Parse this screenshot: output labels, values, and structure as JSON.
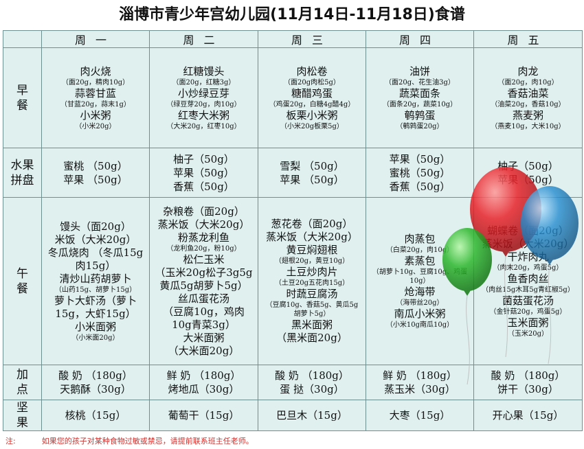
{
  "title": "淄博市青少年宫幼儿园(11月14日-11月18日)食谱",
  "days": [
    "周一",
    "周二",
    "周三",
    "周四",
    "周五"
  ],
  "rows": {
    "breakfast": "早\n餐",
    "fruit": "水果\n拼盘",
    "lunch": "午\n餐",
    "snack": "加\n点",
    "nuts": "坚\n果"
  },
  "breakfast": [
    [
      {
        "t": "肉火烧",
        "s": "big"
      },
      {
        "t": "（面20g，精肉10g）",
        "s": "small"
      },
      {
        "t": "蒜蓉甘蓝",
        "s": "big"
      },
      {
        "t": "（甘蓝20g，蒜末1g）",
        "s": "small"
      },
      {
        "t": "小米粥",
        "s": "big"
      },
      {
        "t": "（小米20g）",
        "s": "small"
      }
    ],
    [
      {
        "t": "红糖馒头",
        "s": "big"
      },
      {
        "t": "（面20g，红糖3g）",
        "s": "small"
      },
      {
        "t": "小炒绿豆芽",
        "s": "big"
      },
      {
        "t": "（绿豆芽20g，肉10g）",
        "s": "small"
      },
      {
        "t": "红枣大米粥",
        "s": "big"
      },
      {
        "t": "（大米20g，红枣10g）",
        "s": "small"
      }
    ],
    [
      {
        "t": "肉松卷",
        "s": "big"
      },
      {
        "t": "（面20g肉松5g）",
        "s": "small"
      },
      {
        "t": "糖醋鸡蛋",
        "s": "big"
      },
      {
        "t": "（鸡蛋20g，白糖4g醋4g）",
        "s": "small"
      },
      {
        "t": "板栗小米粥",
        "s": "big"
      },
      {
        "t": "（小米20g板栗5g）",
        "s": "small"
      }
    ],
    [
      {
        "t": "油饼",
        "s": "big"
      },
      {
        "t": "（面20g、花生油3g）",
        "s": "small"
      },
      {
        "t": "蔬菜面条",
        "s": "big"
      },
      {
        "t": "（面条20g，蔬菜10g）",
        "s": "small"
      },
      {
        "t": "鹌鹑蛋",
        "s": "big"
      },
      {
        "t": "（鹌鹑蛋20g）",
        "s": "small"
      }
    ],
    [
      {
        "t": "肉龙",
        "s": "big"
      },
      {
        "t": "（面20g，肉10g）",
        "s": "small"
      },
      {
        "t": "香菇油菜",
        "s": "big"
      },
      {
        "t": "（油菜20g，香菇10g）",
        "s": "small"
      },
      {
        "t": "燕麦粥",
        "s": "big"
      },
      {
        "t": "（燕麦10g，大米10g）",
        "s": "small"
      }
    ]
  ],
  "fruit": [
    [
      "蜜桃 （50g）",
      "苹果 （50g）"
    ],
    [
      "柚子（50g）",
      "苹果（50g）",
      "香蕉（50g）"
    ],
    [
      "雪梨 （50g）",
      "苹果 （50g）"
    ],
    [
      "苹果（50g）",
      "蜜桃（50g）",
      "香蕉（50g）"
    ],
    [
      "柚子（50g）",
      "苹果（50g）"
    ]
  ],
  "lunch": [
    [
      {
        "t": "馒头（面20g）",
        "s": "big"
      },
      {
        "t": "米饭（大米20g）",
        "s": "big"
      },
      {
        "t": "冬瓜烧肉 （冬瓜15g肉15g）",
        "s": "big"
      },
      {
        "t": "清炒山药胡萝卜",
        "s": "big"
      },
      {
        "t": "（山药15g、胡萝卜15g）",
        "s": "small"
      },
      {
        "t": "萝卜大虾汤（萝卜15g，大虾15g）",
        "s": "big"
      },
      {
        "t": "小米面粥",
        "s": "big"
      },
      {
        "t": "（小米面20g）",
        "s": "small"
      }
    ],
    [
      {
        "t": "杂粮卷（面20g）",
        "s": "big"
      },
      {
        "t": "蒸米饭（大米20g）",
        "s": "big"
      },
      {
        "t": "粉蒸龙利鱼",
        "s": "big"
      },
      {
        "t": "（龙利鱼20g，粉10g）",
        "s": "small"
      },
      {
        "t": "松仁玉米",
        "s": "big"
      },
      {
        "t": "（玉米20g松子3g5g黄瓜5g胡萝卜5g）",
        "s": "big"
      },
      {
        "t": "丝瓜蛋花汤",
        "s": "big"
      },
      {
        "t": "（豆腐10g，鸡肉10g青菜3g）",
        "s": "big"
      },
      {
        "t": "大米面粥",
        "s": "big"
      },
      {
        "t": "（大米面20g）",
        "s": "big"
      }
    ],
    [
      {
        "t": "葱花卷（面20g）",
        "s": "big"
      },
      {
        "t": "蒸米饭（大米20g）",
        "s": "big"
      },
      {
        "t": "黄豆焖翅根",
        "s": "big"
      },
      {
        "t": "（翅根20g，黄豆10g）",
        "s": "small"
      },
      {
        "t": "土豆炒肉片",
        "s": "big"
      },
      {
        "t": "（土豆20g五花肉15g）",
        "s": "small"
      },
      {
        "t": "时蔬豆腐汤",
        "s": "big"
      },
      {
        "t": "（豆腐10g、香菇5g、黄瓜5g胡萝卜5g）",
        "s": "small"
      },
      {
        "t": "黑米面粥",
        "s": "big"
      },
      {
        "t": "（黑米面20g）",
        "s": "big"
      }
    ],
    [
      {
        "t": "肉蒸包",
        "s": "big"
      },
      {
        "t": "（白菜20g，肉10g）",
        "s": "small"
      },
      {
        "t": "素蒸包",
        "s": "big"
      },
      {
        "t": "（胡萝卜10g、豆腐10g、鸡蛋10g）",
        "s": "small"
      },
      {
        "t": "炝海带",
        "s": "big"
      },
      {
        "t": "（海带丝20g）",
        "s": "small"
      },
      {
        "t": "南瓜小米粥",
        "s": "big"
      },
      {
        "t": "（小米10g南瓜10g）",
        "s": "small"
      }
    ],
    [
      {
        "t": "蝴蝶卷（面20g）",
        "s": "big"
      },
      {
        "t": "蒸米饭（大米20g）",
        "s": "big"
      },
      {
        "t": "干炸肉丸",
        "s": "big"
      },
      {
        "t": "（肉末20g，鸡蛋5g）",
        "s": "small"
      },
      {
        "t": "鱼香肉丝",
        "s": "big"
      },
      {
        "t": "（肉丝15g木耳5g青红椒5g）",
        "s": "small"
      },
      {
        "t": "菌菇蛋花汤",
        "s": "big"
      },
      {
        "t": "（金针菇20g，鸡蛋5g）",
        "s": "small"
      },
      {
        "t": "玉米面粥",
        "s": "big"
      },
      {
        "t": "（玉米20g）",
        "s": "small"
      }
    ]
  ],
  "snack": [
    [
      "酸 奶 （180g）",
      "天鹅酥（30g）"
    ],
    [
      "鲜 奶 （180g）",
      "烤地瓜（30g）"
    ],
    [
      "酸 奶 （180g）",
      "蛋 挞（30g）"
    ],
    [
      "鲜 奶 （180g）",
      "蒸玉米（30g）"
    ],
    [
      "酸 奶 （180g）",
      "饼干（30g）"
    ]
  ],
  "nuts": [
    "核桃（15g）",
    "葡萄干（15g）",
    "巴旦木（15g）",
    "大枣（15g）",
    "开心果（15g）"
  ],
  "note": {
    "label": "注:",
    "text": "如果您的孩子对某种食物过敏或禁忌，请提前联系班主任老师。"
  },
  "colors": {
    "table_bg": "#dff0ef",
    "note": "#d0312d",
    "balloon_red": "#e8242b",
    "balloon_blue": "#2a8fd0",
    "balloon_green": "#2fb82f"
  }
}
